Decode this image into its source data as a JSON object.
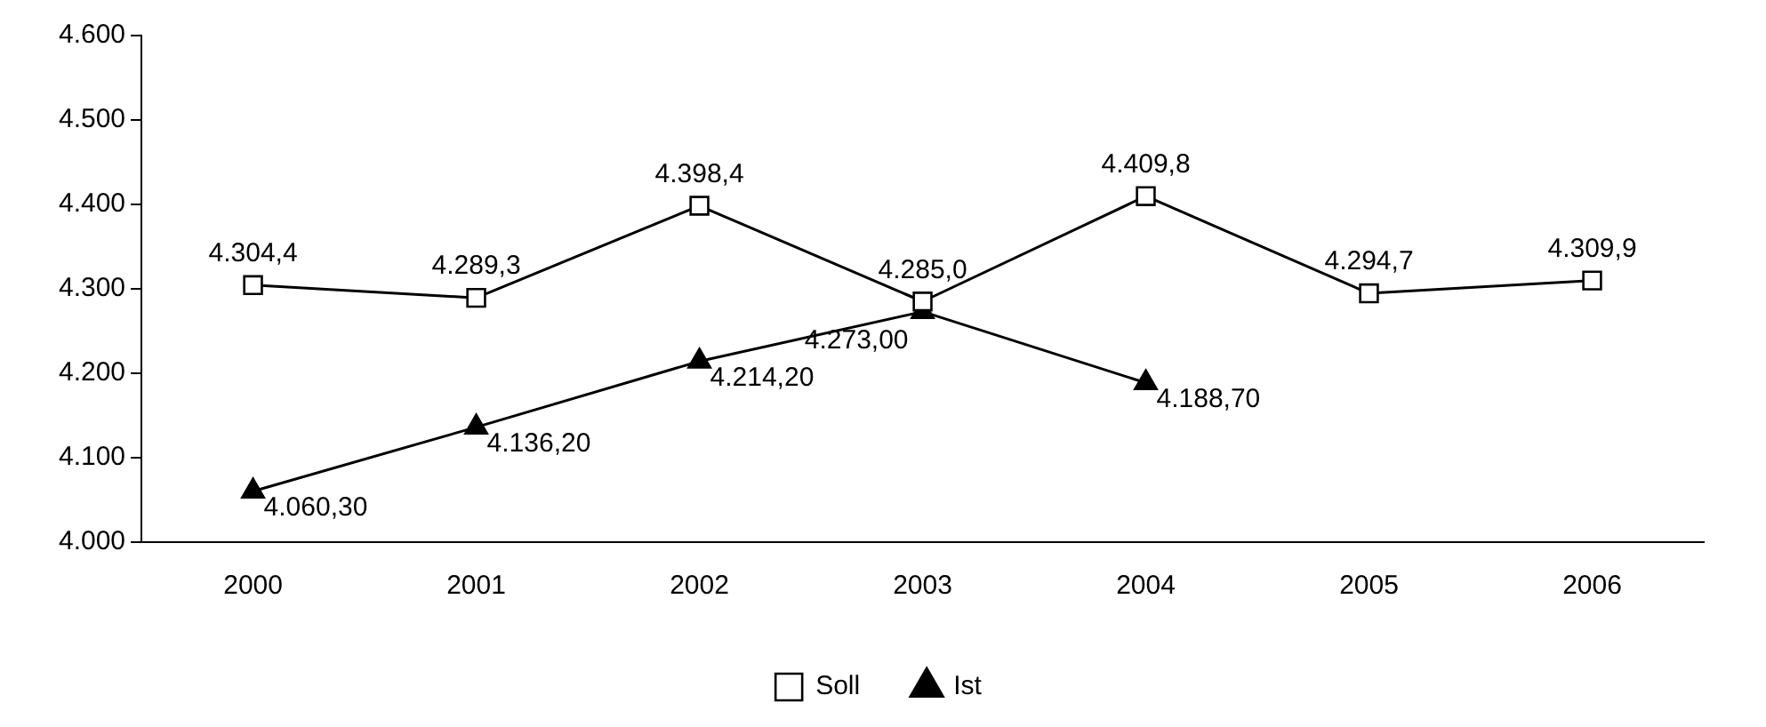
{
  "chart_data": {
    "type": "line",
    "categories": [
      "2000",
      "2001",
      "2002",
      "2003",
      "2004",
      "2005",
      "2006"
    ],
    "ylim": [
      4000,
      4600
    ],
    "yticks": [
      {
        "value": 4000,
        "label": "4.000"
      },
      {
        "value": 4100,
        "label": "4.100"
      },
      {
        "value": 4200,
        "label": "4.200"
      },
      {
        "value": 4300,
        "label": "4.300"
      },
      {
        "value": 4400,
        "label": "4.400"
      },
      {
        "value": 4500,
        "label": "4.500"
      },
      {
        "value": 4600,
        "label": "4.600"
      }
    ],
    "grid": false,
    "legend": "bottom",
    "line_style": "solid",
    "series": [
      {
        "name": "Soll",
        "color": "#000000",
        "marker": "square",
        "values": [
          4304.4,
          4289.3,
          4398.4,
          4285.0,
          4409.8,
          4294.7,
          4309.9
        ],
        "value_labels": [
          "4.304,4",
          "4.289,3",
          "4.398,4",
          "4.285,0",
          "4.409,8",
          "4.294,7",
          "4.309,9"
        ]
      },
      {
        "name": "Ist",
        "color": "#000000",
        "marker": "triangle",
        "values": [
          4060.3,
          4136.2,
          4214.2,
          4273.0,
          4188.7,
          null,
          null
        ],
        "value_labels": [
          "4.060,30",
          "4.136,20",
          "4.214,20",
          "4.273,00",
          "4.188,70",
          null,
          null
        ]
      }
    ]
  }
}
